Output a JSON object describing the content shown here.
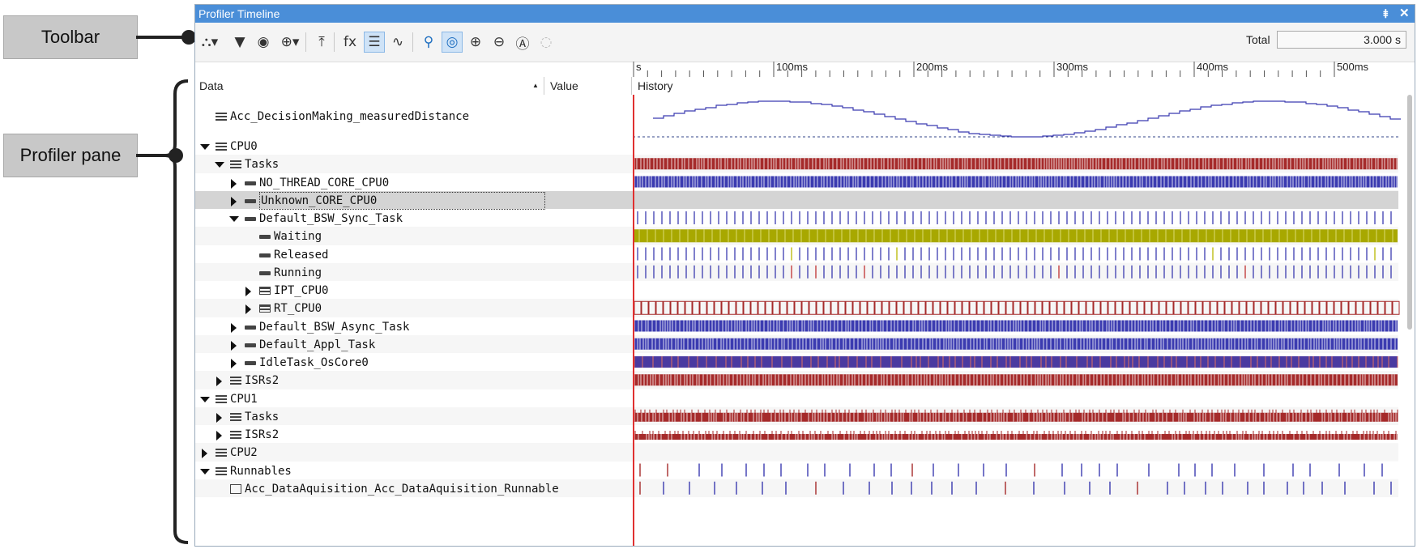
{
  "annotations": {
    "toolbar_callout": "Toolbar",
    "profiler_pane_callout": "Profiler pane"
  },
  "window": {
    "title": "Profiler Timeline",
    "pin_glyph": "⯒",
    "close_glyph": "✕"
  },
  "toolbar": {
    "icons": [
      {
        "name": "branch-dropdown-icon",
        "glyph": "⛬▾"
      },
      {
        "name": "filter-icon",
        "glyph": "▼"
      },
      {
        "name": "hide-eye-icon",
        "glyph": "◉"
      },
      {
        "name": "add-marker-icon",
        "glyph": "⊕▾"
      },
      {
        "name": "export-icon",
        "glyph": "⤒"
      },
      {
        "name": "formula-icon",
        "glyph": "fx"
      },
      {
        "name": "list-view-icon",
        "glyph": "☰"
      },
      {
        "name": "signal-icon",
        "glyph": "∿"
      },
      {
        "name": "search-icon",
        "glyph": "⚲"
      },
      {
        "name": "focus-icon",
        "glyph": "◎"
      },
      {
        "name": "zoom-in-icon",
        "glyph": "⊕"
      },
      {
        "name": "zoom-out-icon",
        "glyph": "⊖"
      },
      {
        "name": "zoom-auto-icon",
        "glyph": "Ⓐ"
      },
      {
        "name": "zoom-disabled-icon",
        "glyph": "◌"
      }
    ],
    "total_label": "Total",
    "total_value": "3.000 s"
  },
  "ruler": {
    "labels": [
      "s",
      "100ms",
      "200ms",
      "300ms",
      "400ms",
      "500ms"
    ]
  },
  "columns": {
    "data": "Data",
    "sort_glyph": "▲",
    "value": "Value",
    "history": "History"
  },
  "tree": [
    {
      "label": "Acc_DecisionMaking_measuredDistance",
      "depth": 0,
      "toggle": "none",
      "icon": "stack",
      "type": "wave"
    },
    {
      "label": "CPU0",
      "depth": 0,
      "toggle": "expanded",
      "icon": "stack",
      "type": "empty"
    },
    {
      "label": "Tasks",
      "depth": 1,
      "toggle": "expanded",
      "icon": "stack",
      "type": "dense",
      "color": "#a52a2a",
      "seed": 3
    },
    {
      "label": "NO_THREAD_CORE_CPU0",
      "depth": 2,
      "toggle": "collapsed",
      "icon": "bar",
      "type": "dense",
      "color": "#3b3bb0",
      "seed": 7
    },
    {
      "label": "Unknown_CORE_CPU0",
      "depth": 2,
      "toggle": "collapsed",
      "icon": "bar",
      "type": "selected"
    },
    {
      "label": "Default_BSW_Sync_Task",
      "depth": 2,
      "toggle": "expanded",
      "icon": "bar",
      "type": "ticks",
      "color": "#3b3bb0",
      "seed": 11
    },
    {
      "label": "Waiting",
      "depth": 3,
      "toggle": "none",
      "icon": "bar",
      "type": "solid",
      "color": "#a8a800",
      "seed": 13
    },
    {
      "label": "Released",
      "depth": 3,
      "toggle": "none",
      "icon": "bar",
      "type": "ticks",
      "color": "#3b3bb0",
      "accent": "#b8b800",
      "seed": 17
    },
    {
      "label": "Running",
      "depth": 3,
      "toggle": "none",
      "icon": "bar",
      "type": "ticks",
      "color": "#3b3bb0",
      "accent": "#c03030",
      "seed": 19
    },
    {
      "label": "IPT_CPU0",
      "depth": 3,
      "toggle": "collapsed",
      "icon": "grp",
      "type": "empty"
    },
    {
      "label": "RT_CPU0",
      "depth": 3,
      "toggle": "collapsed",
      "icon": "grp",
      "type": "boxes",
      "color": "#a52a2a",
      "seed": 23
    },
    {
      "label": "Default_BSW_Async_Task",
      "depth": 2,
      "toggle": "collapsed",
      "icon": "bar",
      "type": "dense",
      "color": "#3b3bb0",
      "seed": 29
    },
    {
      "label": "Default_Appl_Task",
      "depth": 2,
      "toggle": "collapsed",
      "icon": "bar",
      "type": "dense",
      "color": "#3b3bb0",
      "seed": 31
    },
    {
      "label": "IdleTask_OsCore0",
      "depth": 2,
      "toggle": "collapsed",
      "icon": "bar",
      "type": "idle",
      "color": "#4a3aa0",
      "accent": "#e07060",
      "seed": 37
    },
    {
      "label": "ISRs2",
      "depth": 1,
      "toggle": "collapsed",
      "icon": "stack",
      "type": "dense",
      "color": "#a52a2a",
      "seed": 41
    },
    {
      "label": "CPU1",
      "depth": 0,
      "toggle": "expanded",
      "icon": "stack",
      "type": "empty"
    },
    {
      "label": "Tasks",
      "depth": 1,
      "toggle": "collapsed",
      "icon": "stack",
      "type": "half",
      "color": "#a52a2a",
      "seed": 43
    },
    {
      "label": "ISRs2",
      "depth": 1,
      "toggle": "collapsed",
      "icon": "stack",
      "type": "lowhalf",
      "color": "#a52a2a",
      "seed": 47
    },
    {
      "label": "CPU2",
      "depth": 0,
      "toggle": "collapsed",
      "icon": "stack",
      "type": "empty"
    },
    {
      "label": "Runnables",
      "depth": 0,
      "toggle": "expanded",
      "icon": "stack",
      "type": "sparse",
      "color": "#3b3bb0",
      "accent": "#a52a2a",
      "seed": 53
    },
    {
      "label": "Acc_DataAquisition_Acc_DataAquisition_Runnable",
      "depth": 1,
      "toggle": "none",
      "icon": "run",
      "type": "sparse",
      "color": "#3b3bb0",
      "accent": "#a52a2a",
      "seed": 59
    }
  ]
}
